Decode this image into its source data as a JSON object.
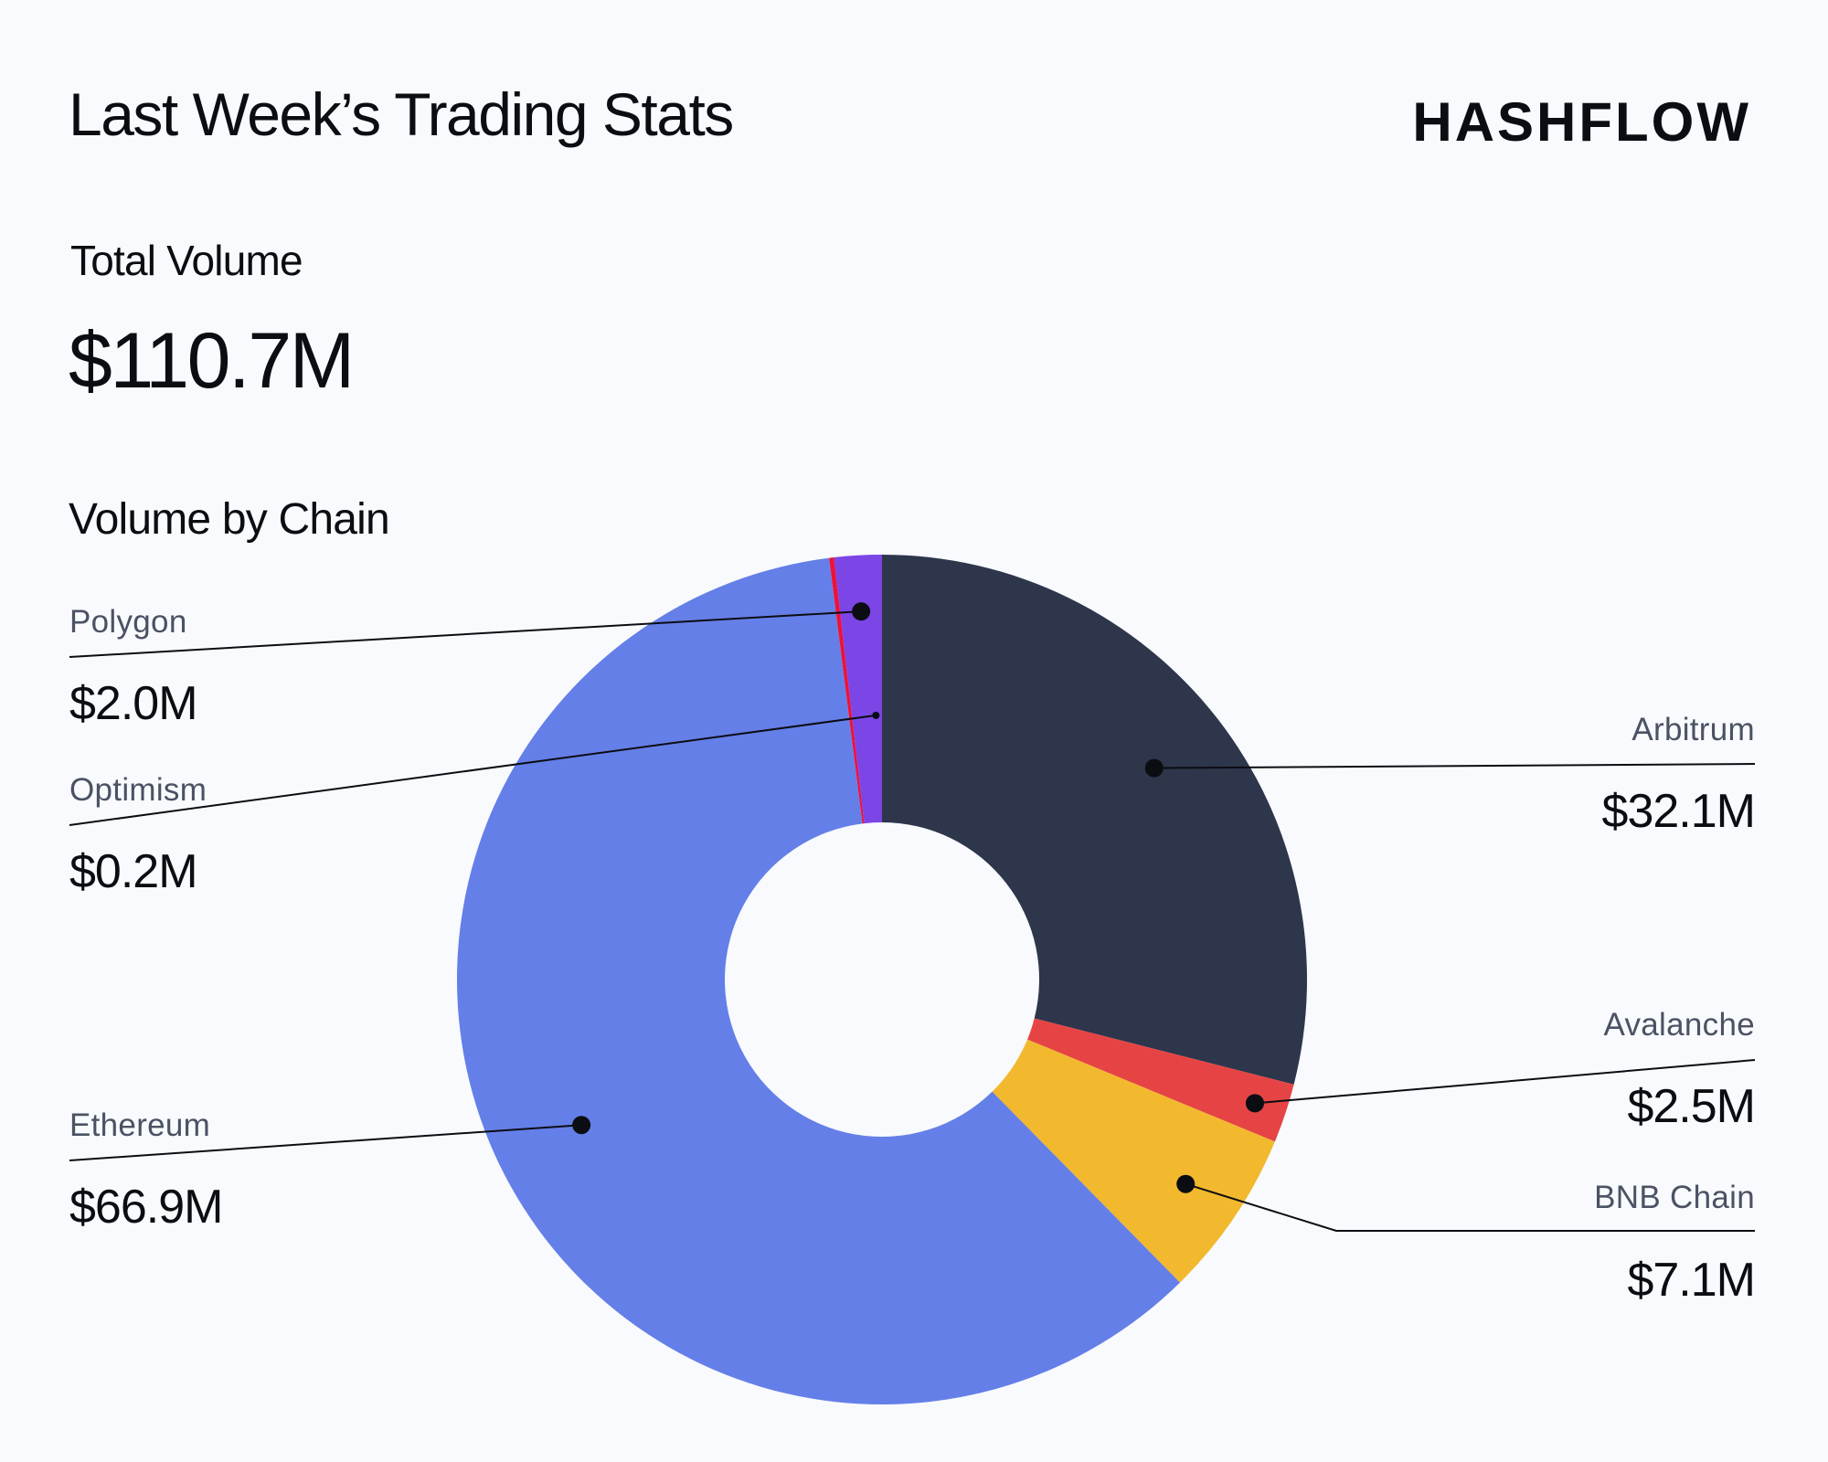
{
  "header": {
    "title": "Last Week’s Trading Stats",
    "logo_text": "HASHFLOW"
  },
  "summary": {
    "total_volume_label": "Total Volume",
    "total_volume_value": "$110.7M"
  },
  "chart_data": {
    "type": "pie",
    "title": "Volume by Chain",
    "donut": true,
    "unit": "$M",
    "categories": [
      "Arbitrum",
      "Avalanche",
      "BNB Chain",
      "Ethereum",
      "Optimism",
      "Polygon"
    ],
    "values": [
      32.1,
      2.5,
      7.1,
      66.9,
      0.2,
      2.0
    ],
    "value_labels": [
      "$32.1M",
      "$2.5M",
      "$7.1M",
      "$66.9M",
      "$0.2M",
      "$2.0M"
    ],
    "colors": [
      "#2d364b",
      "#e64444",
      "#f2b92e",
      "#657fe8",
      "#ee1139",
      "#7c45e6"
    ]
  }
}
